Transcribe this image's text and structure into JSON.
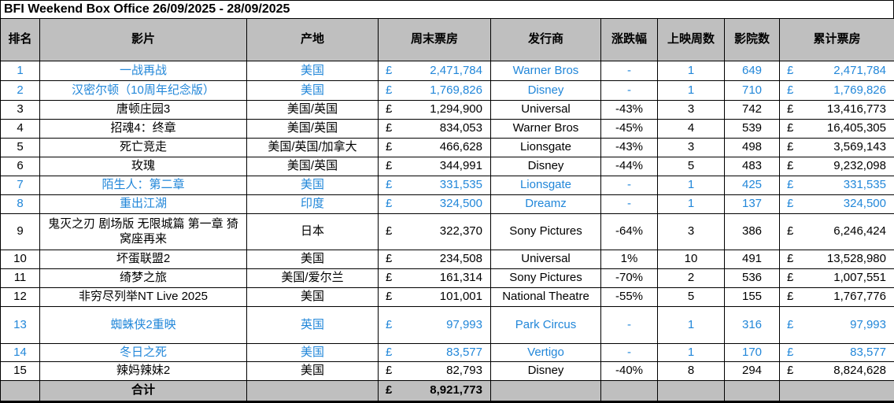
{
  "title": "BFI Weekend Box Office 26/09/2025 - 28/09/2025",
  "currency_symbol": "£",
  "colors": {
    "highlight_text": "#2287D9",
    "header_bg": "#BFBFBF",
    "grid": "#000000"
  },
  "table": {
    "columns": [
      "排名",
      "影片",
      "产地",
      "周末票房",
      "发行商",
      "涨跌幅",
      "上映周数",
      "影院数",
      "累计票房"
    ],
    "rows": [
      {
        "rank": "1",
        "film": "一战再战",
        "origin": "美国",
        "weekend": "2,471,784",
        "distributor": "Warner Bros",
        "change": "-",
        "weeks": "1",
        "cinemas": "649",
        "cumulative": "2,471,784",
        "new_release": true
      },
      {
        "rank": "2",
        "film": "汉密尔顿（10周年纪念版）",
        "origin": "美国",
        "weekend": "1,769,826",
        "distributor": "Disney",
        "change": "-",
        "weeks": "1",
        "cinemas": "710",
        "cumulative": "1,769,826",
        "new_release": true
      },
      {
        "rank": "3",
        "film": "唐顿庄园3",
        "origin": "美国/英国",
        "weekend": "1,294,900",
        "distributor": "Universal",
        "change": "-43%",
        "weeks": "3",
        "cinemas": "742",
        "cumulative": "13,416,773",
        "new_release": false
      },
      {
        "rank": "4",
        "film": "招魂4：终章",
        "origin": "美国/英国",
        "weekend": "834,053",
        "distributor": "Warner Bros",
        "change": "-45%",
        "weeks": "4",
        "cinemas": "539",
        "cumulative": "16,405,305",
        "new_release": false
      },
      {
        "rank": "5",
        "film": "死亡竞走",
        "origin": "美国/英国/加拿大",
        "weekend": "466,628",
        "distributor": "Lionsgate",
        "change": "-43%",
        "weeks": "3",
        "cinemas": "498",
        "cumulative": "3,569,143",
        "new_release": false
      },
      {
        "rank": "6",
        "film": "玫瑰",
        "origin": "美国/英国",
        "weekend": "344,991",
        "distributor": "Disney",
        "change": "-44%",
        "weeks": "5",
        "cinemas": "483",
        "cumulative": "9,232,098",
        "new_release": false
      },
      {
        "rank": "7",
        "film": "陌生人：第二章",
        "origin": "美国",
        "weekend": "331,535",
        "distributor": "Lionsgate",
        "change": "-",
        "weeks": "1",
        "cinemas": "425",
        "cumulative": "331,535",
        "new_release": true
      },
      {
        "rank": "8",
        "film": "重出江湖",
        "origin": "印度",
        "weekend": "324,500",
        "distributor": "Dreamz",
        "change": "-",
        "weeks": "1",
        "cinemas": "137",
        "cumulative": "324,500",
        "new_release": true
      },
      {
        "rank": "9",
        "film": "鬼灭之刃 剧场版 无限城篇 第一章 猗窝座再来",
        "origin": "日本",
        "weekend": "322,370",
        "distributor": "Sony Pictures",
        "change": "-64%",
        "weeks": "3",
        "cinemas": "386",
        "cumulative": "6,246,424",
        "new_release": false
      },
      {
        "rank": "10",
        "film": "坏蛋联盟2",
        "origin": "美国",
        "weekend": "234,508",
        "distributor": "Universal",
        "change": "1%",
        "weeks": "10",
        "cinemas": "491",
        "cumulative": "13,528,980",
        "new_release": false
      },
      {
        "rank": "11",
        "film": "绮梦之旅",
        "origin": "美国/爱尔兰",
        "weekend": "161,314",
        "distributor": "Sony Pictures",
        "change": "-70%",
        "weeks": "2",
        "cinemas": "536",
        "cumulative": "1,007,551",
        "new_release": false
      },
      {
        "rank": "12",
        "film": "非穷尽列举NT Live 2025",
        "origin": "美国",
        "weekend": "101,001",
        "distributor": "National Theatre",
        "change": "-55%",
        "weeks": "5",
        "cinemas": "155",
        "cumulative": "1,767,776",
        "new_release": false
      },
      {
        "rank": "13",
        "film": "蜘蛛侠2重映",
        "origin": "英国",
        "weekend": "97,993",
        "distributor": "Park Circus",
        "change": "-",
        "weeks": "1",
        "cinemas": "316",
        "cumulative": "97,993",
        "new_release": true
      },
      {
        "rank": "14",
        "film": "冬日之死",
        "origin": "美国",
        "weekend": "83,577",
        "distributor": "Vertigo",
        "change": "-",
        "weeks": "1",
        "cinemas": "170",
        "cumulative": "83,577",
        "new_release": true
      },
      {
        "rank": "15",
        "film": "辣妈辣妹2",
        "origin": "美国",
        "weekend": "82,793",
        "distributor": "Disney",
        "change": "-40%",
        "weeks": "8",
        "cinemas": "294",
        "cumulative": "8,824,628",
        "new_release": false
      }
    ],
    "total": {
      "label": "合计",
      "weekend": "8,921,773"
    }
  }
}
